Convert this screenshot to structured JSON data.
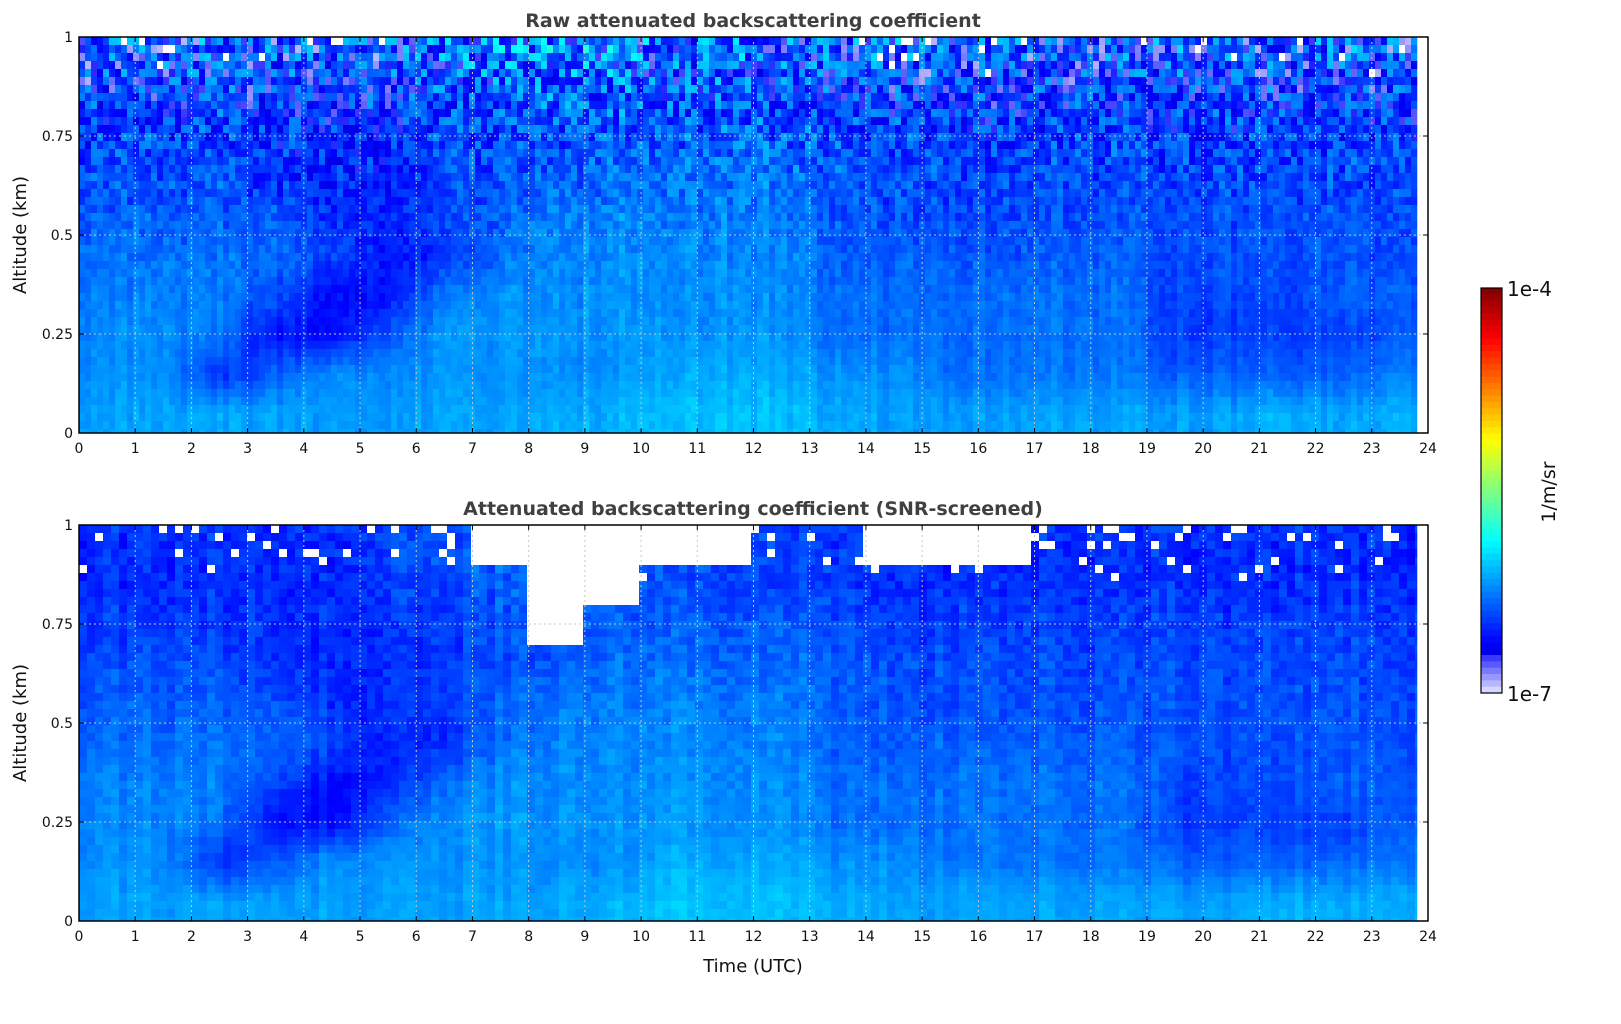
{
  "chart_data": [
    {
      "type": "heatmap",
      "title": "Raw attenuated backscattering coefficient",
      "xlabel": "",
      "ylabel": "Altitude (km)",
      "xlim": [
        0,
        24
      ],
      "ylim": [
        0,
        1
      ],
      "xticks": [
        "0",
        "1",
        "2",
        "3",
        "4",
        "5",
        "6",
        "7",
        "8",
        "9",
        "10",
        "11",
        "12",
        "13",
        "14",
        "15",
        "16",
        "17",
        "18",
        "19",
        "20",
        "21",
        "22",
        "23",
        "24"
      ],
      "yticks": [
        "0",
        "0.25",
        "0.5",
        "0.75",
        "1"
      ],
      "grid": true,
      "data_end_hour": 23.8,
      "x_hours": [
        0.5,
        1.5,
        2.5,
        3.5,
        4.5,
        5.5,
        6.5,
        7.5,
        8.5,
        9.5,
        10.5,
        11.5,
        12.5,
        13.5,
        14.5,
        15.5,
        16.5,
        17.5,
        18.5,
        19.5,
        20.5,
        21.5,
        22.5,
        23.5
      ],
      "y_altitudes_km": [
        0.95,
        0.85,
        0.75,
        0.65,
        0.55,
        0.45,
        0.35,
        0.25,
        0.15,
        0.05
      ],
      "value_units": "log10(1/m/sr)",
      "values": [
        [
          -6.5,
          -6.5,
          -6.5,
          -6.5,
          -6.5,
          -6.45,
          -6.4,
          -6.3,
          -6.25,
          -6.3,
          -6.4,
          -6.35,
          -6.4,
          -6.45,
          -6.5,
          -6.5,
          -6.5,
          -6.5,
          -6.5,
          -6.5,
          -6.5,
          -6.5,
          -6.5,
          -6.5
        ],
        [
          -6.5,
          -6.5,
          -6.5,
          -6.5,
          -6.5,
          -6.45,
          -6.4,
          -6.35,
          -6.35,
          -6.35,
          -6.4,
          -6.4,
          -6.45,
          -6.45,
          -6.5,
          -6.5,
          -6.5,
          -6.5,
          -6.5,
          -6.5,
          -6.5,
          -6.5,
          -6.5,
          -6.5
        ],
        [
          -6.45,
          -6.45,
          -6.45,
          -6.5,
          -6.5,
          -6.5,
          -6.45,
          -6.4,
          -6.4,
          -6.35,
          -6.35,
          -6.35,
          -6.35,
          -6.4,
          -6.45,
          -6.45,
          -6.45,
          -6.45,
          -6.45,
          -6.45,
          -6.45,
          -6.45,
          -6.45,
          -6.45
        ],
        [
          -6.4,
          -6.4,
          -6.4,
          -6.5,
          -6.5,
          -6.5,
          -6.45,
          -6.4,
          -6.35,
          -6.3,
          -6.3,
          -6.3,
          -6.3,
          -6.35,
          -6.4,
          -6.42,
          -6.42,
          -6.42,
          -6.42,
          -6.42,
          -6.42,
          -6.42,
          -6.42,
          -6.42
        ],
        [
          -6.35,
          -6.35,
          -6.35,
          -6.38,
          -6.5,
          -6.5,
          -6.45,
          -6.35,
          -6.25,
          -6.25,
          -6.25,
          -6.25,
          -6.25,
          -6.35,
          -6.4,
          -6.4,
          -6.4,
          -6.4,
          -6.4,
          -6.4,
          -6.4,
          -6.4,
          -6.4,
          -6.4
        ],
        [
          -6.3,
          -6.3,
          -6.3,
          -6.32,
          -6.4,
          -6.55,
          -6.5,
          -6.3,
          -6.22,
          -6.22,
          -6.22,
          -6.22,
          -6.22,
          -6.35,
          -6.35,
          -6.35,
          -6.35,
          -6.35,
          -6.35,
          -6.4,
          -6.4,
          -6.4,
          -6.4,
          -6.4
        ],
        [
          -6.25,
          -6.25,
          -6.25,
          -6.4,
          -6.6,
          -6.55,
          -6.3,
          -6.2,
          -6.2,
          -6.2,
          -6.2,
          -6.2,
          -6.2,
          -6.3,
          -6.3,
          -6.3,
          -6.3,
          -6.3,
          -6.3,
          -6.42,
          -6.42,
          -6.42,
          -6.35,
          -6.35
        ],
        [
          -6.22,
          -6.22,
          -6.3,
          -6.6,
          -6.6,
          -6.35,
          -6.18,
          -6.18,
          -6.18,
          -6.18,
          -6.18,
          -6.18,
          -6.18,
          -6.3,
          -6.3,
          -6.3,
          -6.3,
          -6.3,
          -6.3,
          -6.45,
          -6.45,
          -6.45,
          -6.45,
          -6.35
        ],
        [
          -6.2,
          -6.2,
          -6.5,
          -6.35,
          -6.2,
          -6.2,
          -6.2,
          -6.2,
          -6.2,
          -6.2,
          -6.12,
          -6.12,
          -6.12,
          -6.2,
          -6.2,
          -6.28,
          -6.28,
          -6.28,
          -6.28,
          -6.35,
          -6.35,
          -6.35,
          -6.35,
          -6.25
        ],
        [
          -6.15,
          -6.15,
          -6.15,
          -6.15,
          -6.15,
          -6.15,
          -6.15,
          -6.15,
          -6.12,
          -6.1,
          -6.05,
          -6.05,
          -6.05,
          -6.12,
          -6.15,
          -6.15,
          -6.15,
          -6.15,
          -6.15,
          -6.15,
          -6.15,
          -6.1,
          -6.15,
          -6.1
        ]
      ]
    },
    {
      "type": "heatmap",
      "title": "Attenuated backscattering coefficient (SNR-screened)",
      "xlabel": "Time (UTC)",
      "ylabel": "Altitude (km)",
      "xlim": [
        0,
        24
      ],
      "ylim": [
        0,
        1
      ],
      "xticks": [
        "0",
        "1",
        "2",
        "3",
        "4",
        "5",
        "6",
        "7",
        "8",
        "9",
        "10",
        "11",
        "12",
        "13",
        "14",
        "15",
        "16",
        "17",
        "18",
        "19",
        "20",
        "21",
        "22",
        "23",
        "24"
      ],
      "yticks": [
        "0",
        "0.25",
        "0.5",
        "0.75",
        "1"
      ],
      "grid": true,
      "data_end_hour": 23.8,
      "x_hours": [
        0.5,
        1.5,
        2.5,
        3.5,
        4.5,
        5.5,
        6.5,
        7.5,
        8.5,
        9.5,
        10.5,
        11.5,
        12.5,
        13.5,
        14.5,
        15.5,
        16.5,
        17.5,
        18.5,
        19.5,
        20.5,
        21.5,
        22.5,
        23.5
      ],
      "y_altitudes_km": [
        0.95,
        0.85,
        0.75,
        0.65,
        0.55,
        0.45,
        0.35,
        0.25,
        0.15,
        0.05
      ],
      "value_units": "log10(1/m/sr)",
      "values": [
        [
          -6.5,
          -6.5,
          -6.5,
          -6.5,
          -6.5,
          -6.45,
          -6.4,
          null,
          null,
          null,
          null,
          null,
          -6.4,
          -6.45,
          null,
          null,
          null,
          -6.5,
          -6.5,
          -6.5,
          -6.5,
          -6.5,
          -6.5,
          -6.5
        ],
        [
          -6.5,
          -6.5,
          -6.5,
          -6.5,
          -6.5,
          -6.45,
          -6.4,
          -6.35,
          null,
          null,
          -6.4,
          -6.4,
          -6.45,
          -6.45,
          -6.5,
          -6.5,
          -6.5,
          -6.5,
          -6.5,
          -6.5,
          -6.5,
          -6.5,
          -6.5,
          -6.5
        ],
        [
          -6.45,
          -6.45,
          -6.45,
          -6.5,
          -6.5,
          -6.5,
          -6.45,
          -6.4,
          null,
          -6.35,
          -6.35,
          -6.35,
          -6.35,
          -6.4,
          -6.45,
          -6.45,
          -6.45,
          -6.45,
          -6.45,
          -6.45,
          -6.45,
          -6.45,
          -6.45,
          -6.45
        ],
        [
          -6.4,
          -6.4,
          -6.4,
          -6.5,
          -6.5,
          -6.5,
          -6.45,
          -6.4,
          -6.35,
          -6.3,
          -6.3,
          -6.3,
          -6.3,
          -6.35,
          -6.4,
          -6.42,
          -6.42,
          -6.42,
          -6.42,
          -6.42,
          -6.42,
          -6.42,
          -6.42,
          -6.42
        ],
        [
          -6.35,
          -6.35,
          -6.35,
          -6.38,
          -6.5,
          -6.5,
          -6.45,
          -6.35,
          -6.25,
          -6.25,
          -6.25,
          -6.25,
          -6.25,
          -6.35,
          -6.4,
          -6.4,
          -6.4,
          -6.4,
          -6.4,
          -6.4,
          -6.4,
          -6.4,
          -6.4,
          -6.4
        ],
        [
          -6.3,
          -6.3,
          -6.3,
          -6.32,
          -6.4,
          -6.55,
          -6.5,
          -6.3,
          -6.22,
          -6.22,
          -6.22,
          -6.22,
          -6.22,
          -6.35,
          -6.35,
          -6.35,
          -6.35,
          -6.35,
          -6.35,
          -6.4,
          -6.4,
          -6.4,
          -6.4,
          -6.4
        ],
        [
          -6.25,
          -6.25,
          -6.25,
          -6.4,
          -6.6,
          -6.55,
          -6.3,
          -6.2,
          -6.2,
          -6.2,
          -6.2,
          -6.2,
          -6.2,
          -6.3,
          -6.3,
          -6.3,
          -6.3,
          -6.3,
          -6.3,
          -6.42,
          -6.42,
          -6.42,
          -6.35,
          -6.35
        ],
        [
          -6.22,
          -6.22,
          -6.3,
          -6.6,
          -6.6,
          -6.35,
          -6.18,
          -6.18,
          -6.18,
          -6.18,
          -6.18,
          -6.18,
          -6.18,
          -6.3,
          -6.3,
          -6.3,
          -6.3,
          -6.3,
          -6.3,
          -6.45,
          -6.45,
          -6.45,
          -6.45,
          -6.35
        ],
        [
          -6.2,
          -6.2,
          -6.5,
          -6.35,
          -6.2,
          -6.2,
          -6.2,
          -6.2,
          -6.2,
          -6.2,
          -6.12,
          -6.12,
          -6.12,
          -6.2,
          -6.2,
          -6.28,
          -6.28,
          -6.28,
          -6.28,
          -6.35,
          -6.35,
          -6.35,
          -6.35,
          -6.25
        ],
        [
          -6.15,
          -6.15,
          -6.15,
          -6.15,
          -6.15,
          -6.15,
          -6.15,
          -6.15,
          -6.12,
          -6.1,
          -6.05,
          -6.05,
          -6.05,
          -6.12,
          -6.15,
          -6.15,
          -6.15,
          -6.15,
          -6.15,
          -6.15,
          -6.15,
          -6.1,
          -6.15,
          -6.1
        ]
      ]
    }
  ],
  "colorbar": {
    "label": "1/m/sr",
    "max_label": "1e-4",
    "min_label": "1e-7",
    "log10_range": [
      -7,
      -4
    ],
    "colormap": "jet"
  }
}
